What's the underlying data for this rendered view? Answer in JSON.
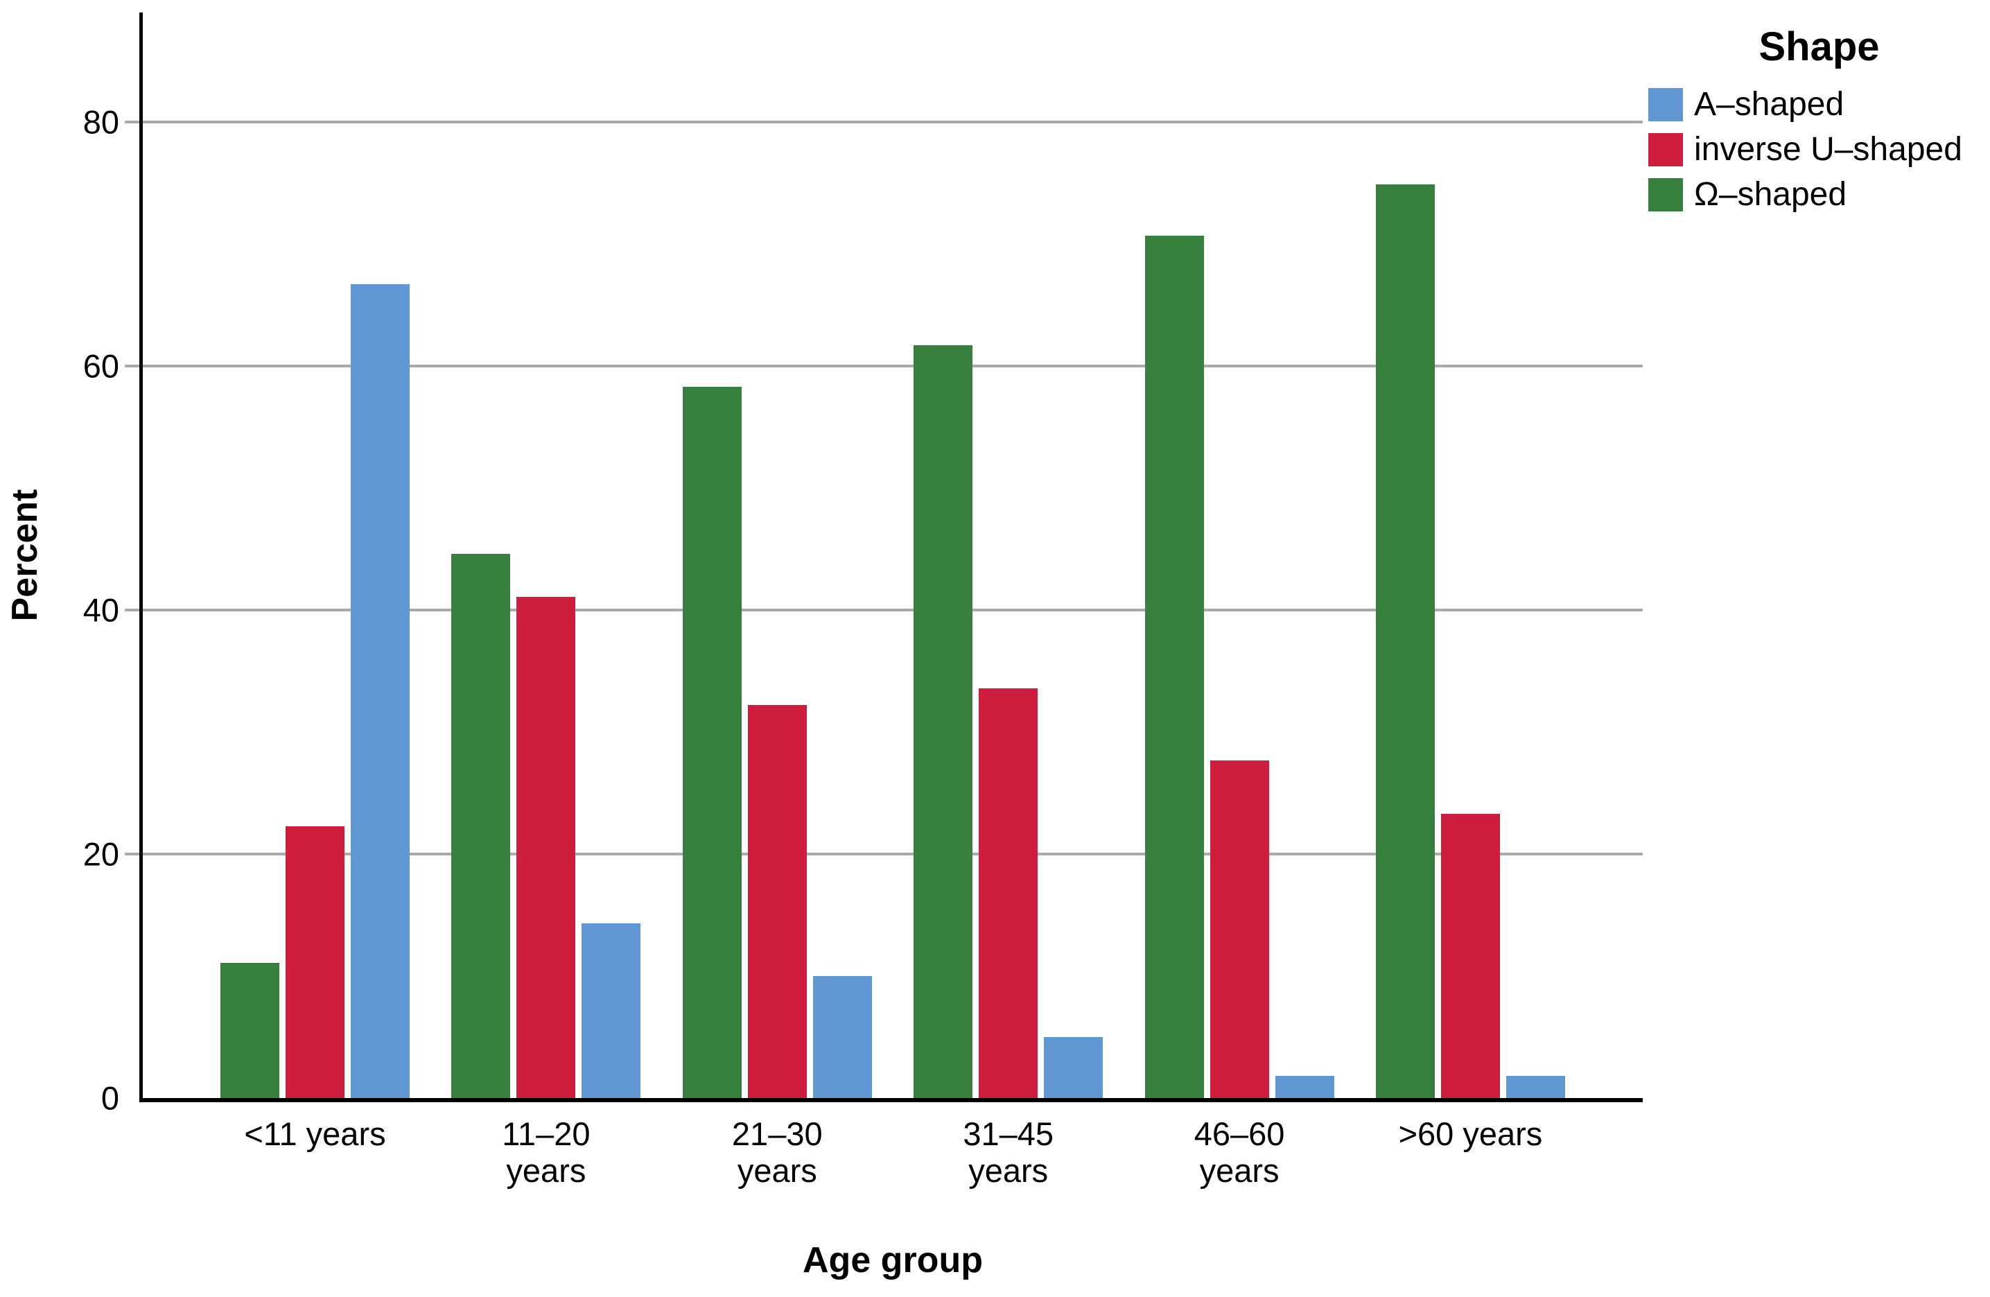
{
  "chart_data": {
    "type": "bar",
    "title": "",
    "categories": [
      "<11 years",
      "11–20\nyears",
      "21–30\nyears",
      "31–45\nyears",
      "46–60\nyears",
      ">60 years"
    ],
    "series": [
      {
        "name": "A–shaped",
        "color": "#6096D2",
        "values": [
          66.7,
          14.3,
          10.0,
          5.0,
          1.8,
          1.8
        ]
      },
      {
        "name": "inverse U–shaped",
        "color": "#CE1D3D",
        "values": [
          22.3,
          41.1,
          32.2,
          33.6,
          27.7,
          23.3
        ]
      },
      {
        "name": "Ω–shaped",
        "color": "#367F3C",
        "values": [
          11.1,
          44.6,
          58.3,
          61.7,
          70.7,
          74.9
        ]
      }
    ],
    "bar_display_order": [
      2,
      1,
      0
    ],
    "xlabel": "Age group",
    "ylabel": "Percent",
    "ylim": [
      0,
      89
    ],
    "yticks": [
      0,
      20,
      40,
      60,
      80
    ],
    "grid": true,
    "gridline_color": "#ABABAB",
    "axis_color": "#000000",
    "background": "#FFFFFF",
    "legend_title": "Shape",
    "legend_position": "top-right"
  }
}
